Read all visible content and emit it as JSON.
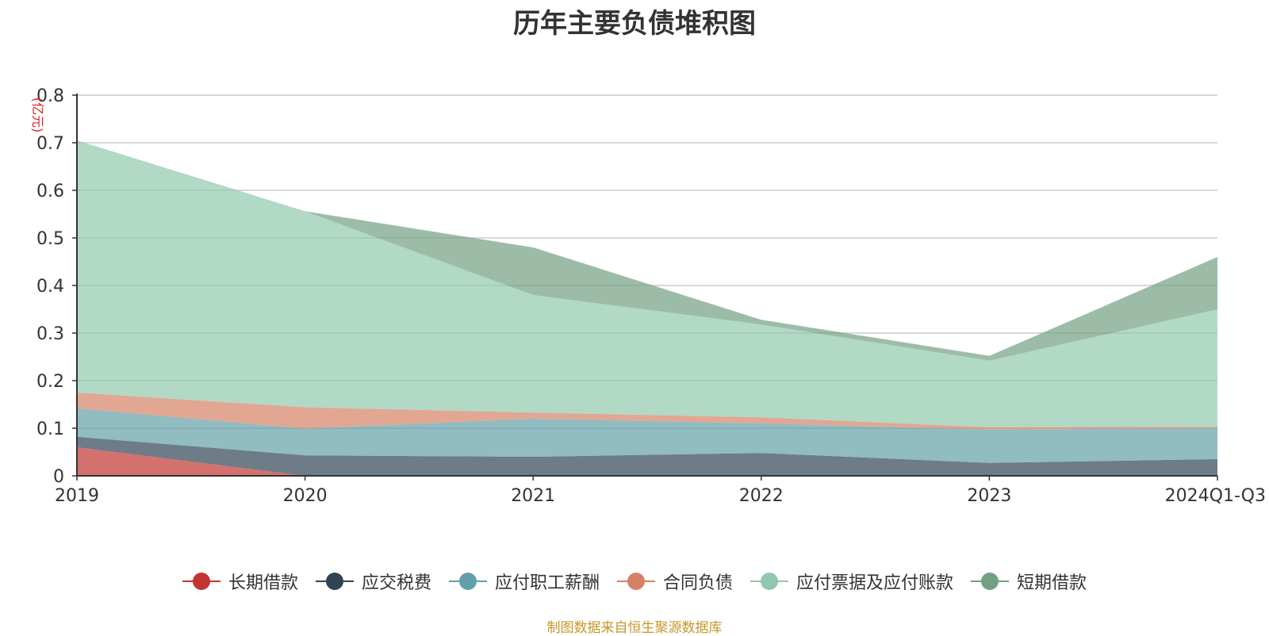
{
  "chart_data": {
    "type": "area",
    "stacked": true,
    "title": "历年主要负债堆积图",
    "ylabel": "(亿元)",
    "xlabel": "",
    "categories": [
      "2019",
      "2020",
      "2021",
      "2022",
      "2023",
      "2024Q1-Q3"
    ],
    "ylim": [
      0,
      0.8
    ],
    "yticks": [
      "0",
      "0.1",
      "0.2",
      "0.3",
      "0.4",
      "0.5",
      "0.6",
      "0.7",
      "0.8"
    ],
    "grid": true,
    "legend_position": "bottom",
    "series": [
      {
        "name": "长期借款",
        "color": "#c23531",
        "values": [
          0.06,
          0.0,
          0.0,
          0.0,
          0.0,
          0.0
        ]
      },
      {
        "name": "应交税费",
        "color": "#2f4554",
        "values": [
          0.022,
          0.043,
          0.04,
          0.048,
          0.027,
          0.035
        ]
      },
      {
        "name": "应付职工薪酬",
        "color": "#61a0a8",
        "values": [
          0.06,
          0.056,
          0.08,
          0.062,
          0.07,
          0.065
        ]
      },
      {
        "name": "合同负债",
        "color": "#d48265",
        "values": [
          0.033,
          0.045,
          0.013,
          0.013,
          0.005,
          0.003
        ]
      },
      {
        "name": "应付票据及应付账款",
        "color": "#91c7ae",
        "values": [
          0.53,
          0.412,
          0.247,
          0.195,
          0.14,
          0.247
        ]
      },
      {
        "name": "短期借款",
        "color": "#749f83",
        "values": [
          0.0,
          0.0,
          0.1,
          0.01,
          0.01,
          0.11
        ]
      }
    ]
  },
  "source_note": "制图数据来自恒生聚源数据库"
}
